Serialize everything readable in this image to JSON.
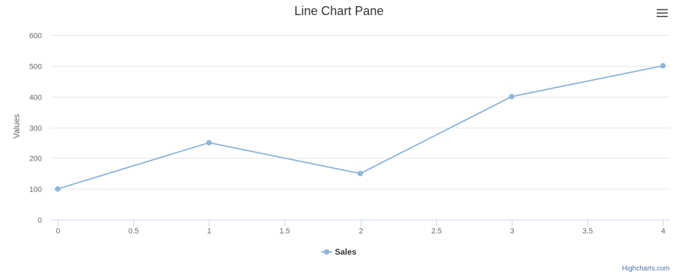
{
  "chart_data": {
    "type": "line",
    "title": "Line Chart Pane",
    "xlabel": "",
    "ylabel": "Values",
    "x": [
      0,
      1,
      2,
      3,
      4
    ],
    "series": [
      {
        "name": "Sales",
        "values": [
          100,
          250,
          150,
          400,
          500
        ],
        "color": "#8fb6da"
      }
    ],
    "xlim": [
      0,
      4
    ],
    "ylim": [
      0,
      600
    ],
    "xticks": [
      "0",
      "0.5",
      "1",
      "1.5",
      "2",
      "2.5",
      "3",
      "3.5",
      "4"
    ],
    "yticks": [
      "0",
      "100",
      "200",
      "300",
      "400",
      "500",
      "600"
    ],
    "grid": "horizontal",
    "legend": "bottom-center",
    "credits": "Highcharts.com"
  },
  "colors": {
    "title": "#333333",
    "axis_text": "#666666",
    "grid": "#e6e6e6",
    "axis_line": "#ccd6eb",
    "menu_icon": "#666666",
    "credits": "#4b6fa8",
    "legend_text": "#333333"
  },
  "icons": {
    "context_menu": "hamburger-menu-icon"
  }
}
